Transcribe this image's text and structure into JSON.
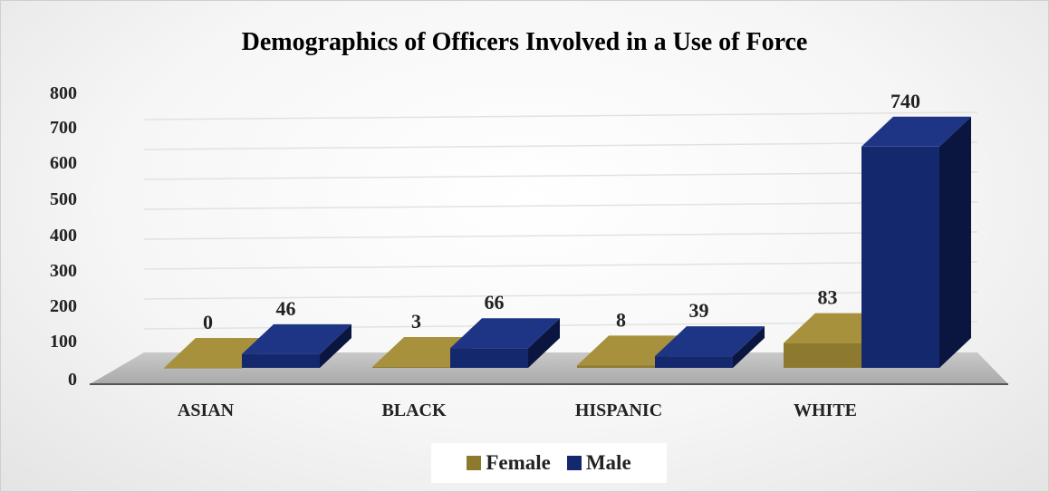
{
  "chart_data": {
    "type": "bar",
    "title": "Demographics of Officers Involved in a Use of Force",
    "categories": [
      "ASIAN",
      "BLACK",
      "HISPANIC",
      "WHITE"
    ],
    "series": [
      {
        "name": "Female",
        "values": [
          0,
          3,
          8,
          83
        ],
        "color": "#8e7a2e"
      },
      {
        "name": "Male",
        "values": [
          46,
          66,
          39,
          740
        ],
        "color": "#14286e"
      }
    ],
    "ylim": [
      0,
      800
    ],
    "yticks": [
      "0",
      "100",
      "200",
      "300",
      "400",
      "500",
      "600",
      "700",
      "800"
    ],
    "xlabel": "",
    "ylabel": "",
    "grid": true,
    "legend": "bottom",
    "style": "3d-column"
  }
}
